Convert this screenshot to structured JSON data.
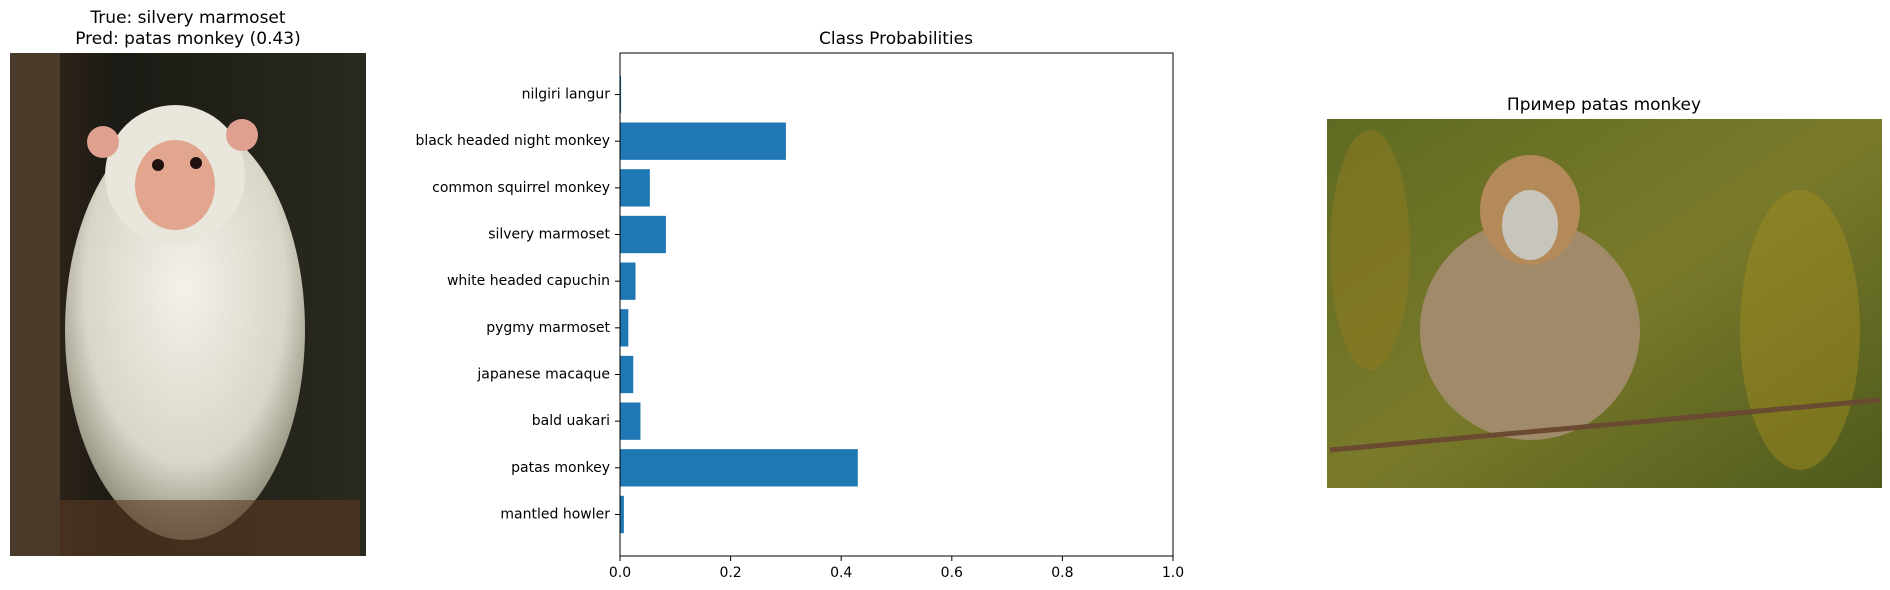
{
  "left_image": {
    "title": "True: silvery marmoset",
    "subtitle": "Pred: patas monkey (0.43)"
  },
  "right_image": {
    "title": "Пример patas monkey"
  },
  "chart_data": {
    "type": "barh",
    "title": "Class Probabilities",
    "categories": [
      "nilgiri langur",
      "black headed night monkey",
      "common squirrel monkey",
      "silvery marmoset",
      "white headed capuchin",
      "pygmy marmoset",
      "japanese macaque",
      "bald uakari",
      "patas monkey",
      "mantled howler"
    ],
    "values": [
      0.002,
      0.3,
      0.054,
      0.083,
      0.028,
      0.015,
      0.024,
      0.037,
      0.43,
      0.007
    ],
    "color": "#1f77b4",
    "xlim": [
      0,
      1
    ],
    "xticks": [
      {
        "value": 0,
        "label": "0.0"
      },
      {
        "value": 0.2,
        "label": "0.2"
      },
      {
        "value": 0.4,
        "label": "0.4"
      },
      {
        "value": 0.6,
        "label": "0.6"
      },
      {
        "value": 0.8,
        "label": "0.8"
      },
      {
        "value": 1,
        "label": "1.0"
      }
    ]
  }
}
